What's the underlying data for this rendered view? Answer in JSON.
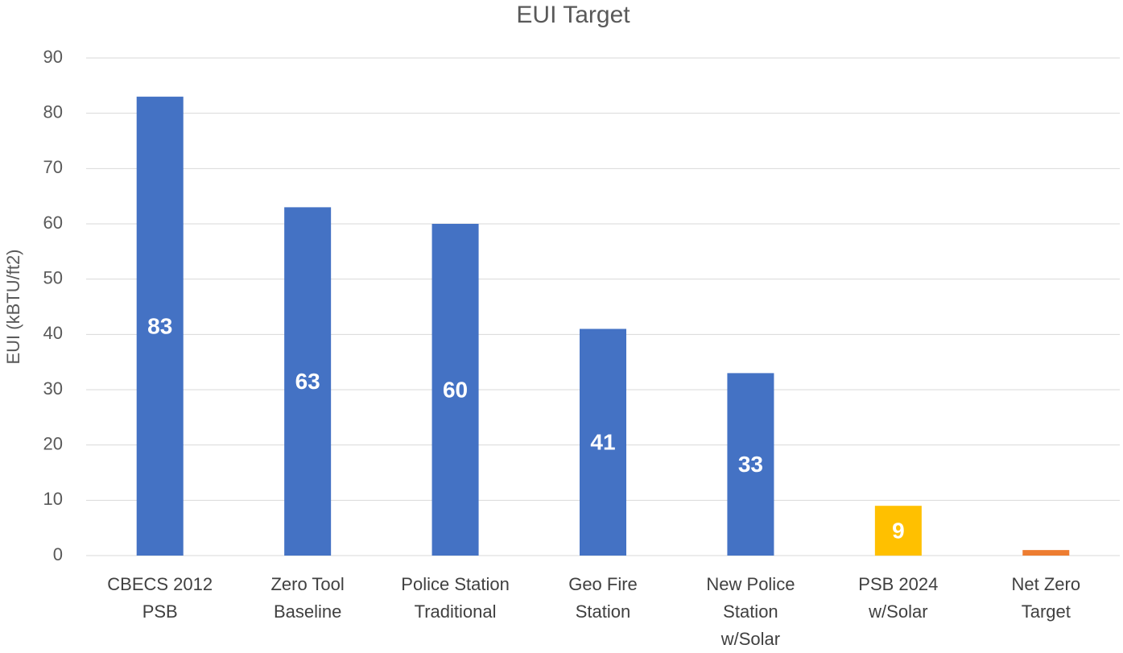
{
  "chart_data": {
    "type": "bar",
    "title": "EUI Target",
    "y_label": "EUI (kBTU/ft2)",
    "categories": [
      "CBECS 2012\nPSB",
      "Zero Tool\nBaseline",
      "Police Station\nTraditional",
      "Geo Fire\nStation",
      "New Police\nStation\nw/Solar",
      "PSB 2024\nw/Solar",
      "Net Zero\nTarget"
    ],
    "values": [
      83,
      63,
      60,
      41,
      33,
      9,
      1
    ],
    "colors": [
      "#4472c4",
      "#4472c4",
      "#4472c4",
      "#4472c4",
      "#4472c4",
      "#ffc000",
      "#ed7d31"
    ],
    "ylim": [
      0,
      90
    ],
    "yticks": [
      0,
      10,
      20,
      30,
      40,
      50,
      60,
      70,
      80,
      90
    ],
    "grid": true,
    "data_labels": true
  }
}
